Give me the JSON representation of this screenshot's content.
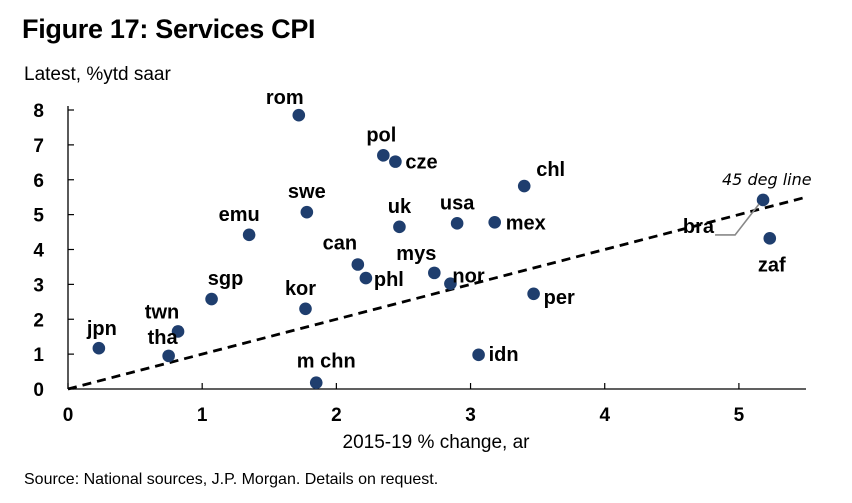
{
  "figure": {
    "title": "Figure 17: Services CPI",
    "ylabel": "Latest, %ytd saar",
    "xlabel": "2015-19 % change, ar",
    "source": "Source: National sources, J.P. Morgan. Details on request."
  },
  "chart_data": {
    "type": "scatter",
    "title": "Figure 17: Services CPI",
    "xlabel": "2015-19 % change, ar",
    "ylabel": "Latest, %ytd saar",
    "xlim": [
      0,
      5.5
    ],
    "ylim": [
      0,
      8
    ],
    "xticks": [
      0,
      1,
      2,
      3,
      4,
      5
    ],
    "yticks": [
      0,
      1,
      2,
      3,
      4,
      5,
      6,
      7,
      8
    ],
    "grid": false,
    "marker_color": "#1f3e6e",
    "points": [
      {
        "label": "rom",
        "x": 1.72,
        "y": 7.85
      },
      {
        "label": "pol",
        "x": 2.35,
        "y": 6.7
      },
      {
        "label": "cze",
        "x": 2.44,
        "y": 6.52
      },
      {
        "label": "chl",
        "x": 3.4,
        "y": 5.82
      },
      {
        "label": "swe",
        "x": 1.78,
        "y": 5.07
      },
      {
        "label": "bra",
        "x": 5.18,
        "y": 5.42
      },
      {
        "label": "usa",
        "x": 2.9,
        "y": 4.75
      },
      {
        "label": "uk",
        "x": 2.47,
        "y": 4.65
      },
      {
        "label": "mex",
        "x": 3.18,
        "y": 4.78
      },
      {
        "label": "emu",
        "x": 1.35,
        "y": 4.42
      },
      {
        "label": "zaf",
        "x": 5.23,
        "y": 4.32
      },
      {
        "label": "can",
        "x": 2.16,
        "y": 3.57
      },
      {
        "label": "mys",
        "x": 2.73,
        "y": 3.33
      },
      {
        "label": "phl",
        "x": 2.22,
        "y": 3.18
      },
      {
        "label": "nor",
        "x": 2.85,
        "y": 3.02
      },
      {
        "label": "sgp",
        "x": 1.07,
        "y": 2.58
      },
      {
        "label": "per",
        "x": 3.47,
        "y": 2.73
      },
      {
        "label": "kor",
        "x": 1.77,
        "y": 2.3
      },
      {
        "label": "twn",
        "x": 0.82,
        "y": 1.65
      },
      {
        "label": "jpn",
        "x": 0.23,
        "y": 1.17
      },
      {
        "label": "tha",
        "x": 0.75,
        "y": 0.95
      },
      {
        "label": "idn",
        "x": 3.06,
        "y": 0.98
      },
      {
        "label": "m chn",
        "x": 1.85,
        "y": 0.18
      }
    ],
    "reference_line": {
      "label": "45 deg line",
      "x": [
        0,
        5.5
      ],
      "y": [
        0,
        5.5
      ],
      "style": "dashed"
    }
  }
}
